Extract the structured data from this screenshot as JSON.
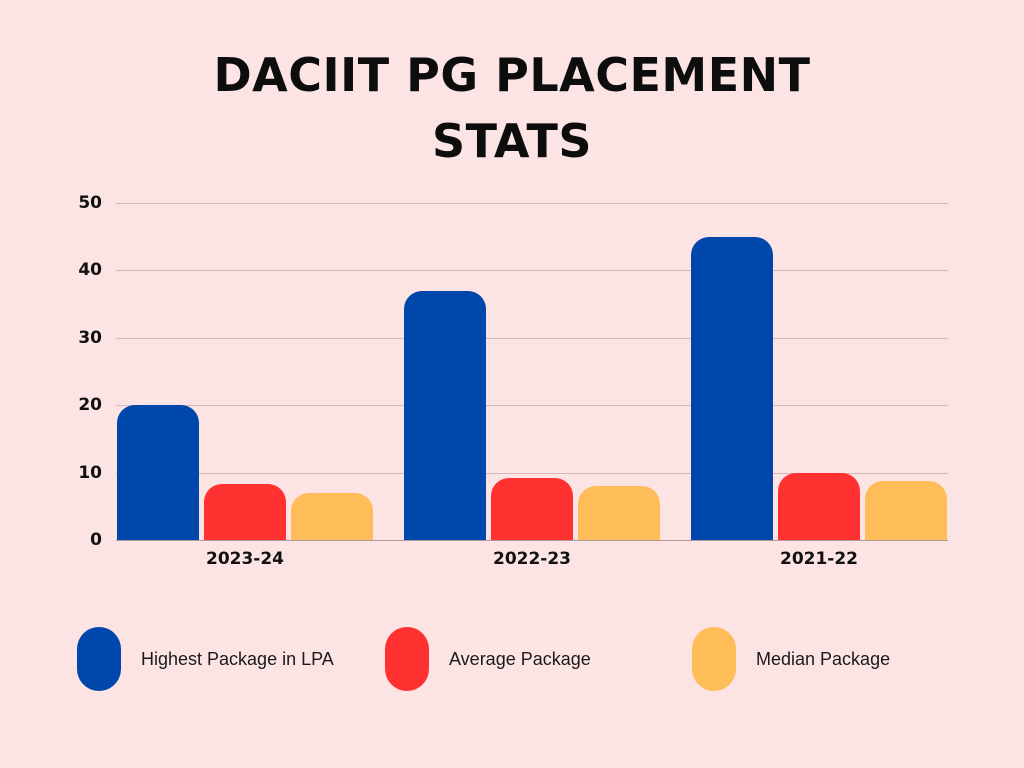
{
  "title": {
    "line1": "DACIIT PG PLACEMENT",
    "line2": "STATS"
  },
  "colors": {
    "background": "#fde4e4",
    "highest": "#0047ab",
    "average": "#ff3131",
    "median": "#ffbd59",
    "gridline": "#d6b8bb"
  },
  "legend": [
    {
      "label": "Highest Package in LPA",
      "color": "#0047ab"
    },
    {
      "label": "Average Package",
      "color": "#ff3131"
    },
    {
      "label": "Median Package",
      "color": "#ffbd59"
    }
  ],
  "chart_data": {
    "type": "bar",
    "title": "DACIIT PG PLACEMENT STATS",
    "xlabel": "",
    "ylabel": "",
    "categories": [
      "2023-24",
      "2022-23",
      "2021-22"
    ],
    "series": [
      {
        "name": "Highest Package in LPA",
        "color": "#0047ab",
        "values": [
          20,
          37,
          45
        ]
      },
      {
        "name": "Average Package",
        "color": "#ff3131",
        "values": [
          8.3,
          9.2,
          10
        ]
      },
      {
        "name": "Median Package",
        "color": "#ffbd59",
        "values": [
          7,
          8,
          8.8
        ]
      }
    ],
    "yticks": [
      0,
      10,
      20,
      30,
      40,
      50
    ],
    "ylim": [
      0,
      50
    ],
    "grid": true,
    "legend_position": "bottom"
  }
}
